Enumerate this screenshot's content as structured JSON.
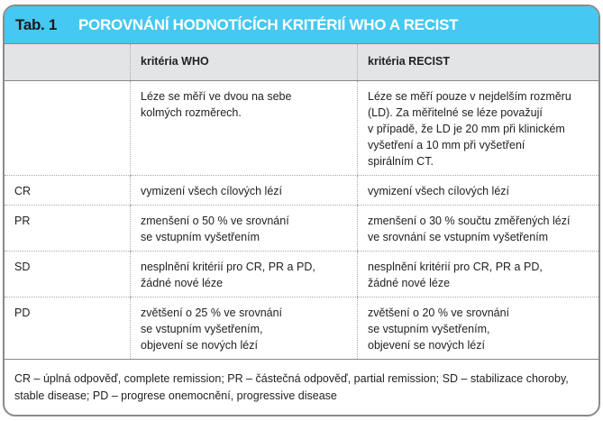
{
  "header": {
    "tab_label": "Tab. 1",
    "title": "POROVNÁNÍ HODNOTÍCÍCH KRITÉRIÍ WHO A RECIST",
    "color": "#45c8f2"
  },
  "columns": [
    "",
    "kritéria WHO",
    "kritéria RECIST"
  ],
  "rows": [
    {
      "label": "",
      "who": "Léze se měří ve dvou na sebe\nkolmých rozměrech.",
      "recist": "Léze se měří pouze v nejdelším rozměru\n(LD). Za měřitelné se léze považují\nv případě, že LD je 20 mm při klinickém\nvyšetření a 10 mm při vyšetření\nspirálním CT."
    },
    {
      "label": "CR",
      "who": "vymizení všech cílových lézí",
      "recist": "vymizení všech cílových lézí"
    },
    {
      "label": "PR",
      "who": "zmenšení o 50 % ve srovnání\nse vstupním vyšetřením",
      "recist": "zmenšení o 30 % součtu změřených lézí\nve srovnání se vstupním vyšetřením"
    },
    {
      "label": "SD",
      "who": "nesplnění kritérií pro CR, PR a PD,\nžádné nové léze",
      "recist": "nesplnění kritérií pro CR, PR a PD,\nžádné nové léze"
    },
    {
      "label": "PD",
      "who": "zvětšení o 25 % ve srovnání\nse vstupním vyšetřením,\nobjevení se nových lézí",
      "recist": "zvětšení o 20 % ve srovnání\nse vstupním vyšetřením,\nobjevení se nových lézí"
    }
  ],
  "footnote": "CR – úplná odpověď, complete remission; PR – částečná odpověď, partial remission; SD – stabilizace choroby, stable disease; PD – progrese onemocnění, progressive disease"
}
